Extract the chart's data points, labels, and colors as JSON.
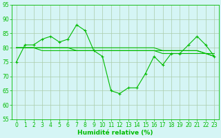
{
  "title": "",
  "xlabel": "Humidité relative (%)",
  "ylabel": "",
  "background_color": "#d5f5f5",
  "plot_bg_color": "#d5f5f5",
  "grid_color": "#aaccaa",
  "line_color": "#00bb00",
  "marker_color": "#00bb00",
  "x": [
    0,
    1,
    2,
    3,
    4,
    5,
    6,
    7,
    8,
    9,
    10,
    11,
    12,
    13,
    14,
    15,
    16,
    17,
    18,
    19,
    20,
    21,
    22,
    23
  ],
  "y_main": [
    75,
    81,
    81,
    83,
    84,
    82,
    83,
    88,
    86,
    79,
    77,
    65,
    64,
    66,
    66,
    71,
    77,
    74,
    78,
    78,
    81,
    84,
    81,
    77
  ],
  "y_trend1": [
    80,
    80,
    80,
    80,
    80,
    80,
    80,
    80,
    80,
    80,
    80,
    80,
    80,
    80,
    80,
    80,
    80,
    79,
    79,
    79,
    79,
    79,
    78,
    78
  ],
  "y_trend2": [
    80,
    80,
    80,
    80,
    80,
    80,
    80,
    79,
    79,
    79,
    79,
    79,
    79,
    79,
    79,
    79,
    79,
    78,
    78,
    78,
    78,
    78,
    78,
    77
  ],
  "y_trend3": [
    80,
    80,
    80,
    79,
    79,
    79,
    79,
    79,
    79,
    79,
    79,
    79,
    79,
    79,
    79,
    79,
    79,
    79,
    79,
    79,
    79,
    79,
    78,
    77
  ],
  "ylim": [
    55,
    95
  ],
  "xlim": [
    -0.5,
    23.5
  ],
  "yticks": [
    55,
    60,
    65,
    70,
    75,
    80,
    85,
    90,
    95
  ],
  "xticks": [
    0,
    1,
    2,
    3,
    4,
    5,
    6,
    7,
    8,
    9,
    10,
    11,
    12,
    13,
    14,
    15,
    16,
    17,
    18,
    19,
    20,
    21,
    22,
    23
  ],
  "xlabel_fontsize": 6.5,
  "tick_fontsize": 5.5,
  "linewidth": 0.8,
  "markersize": 3.0
}
